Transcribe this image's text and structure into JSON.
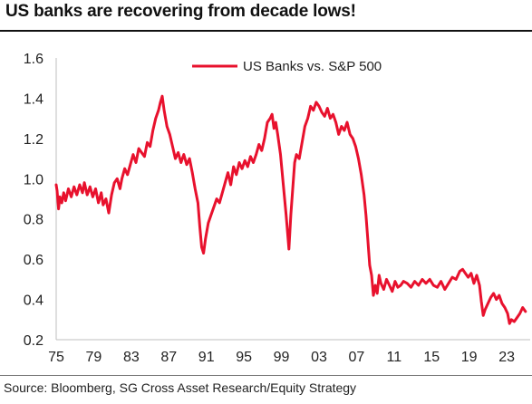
{
  "title": "US banks are recovering from decade lows!",
  "source": "Source: Bloomberg, SG Cross Asset Research/Equity Strategy",
  "colors": {
    "series": "#e8112d",
    "axis": "#bfbfbf",
    "text": "#222222"
  },
  "chart_data": {
    "type": "line",
    "title": "US banks are recovering from decade lows!",
    "xlabel": "",
    "ylabel": "",
    "legend": "top-center",
    "grid": false,
    "xlim": [
      1975,
      2025.5
    ],
    "ylim": [
      0.2,
      1.6
    ],
    "xticks": [
      1975,
      1979,
      1983,
      1987,
      1991,
      1995,
      1999,
      2003,
      2007,
      2011,
      2015,
      2019,
      2023
    ],
    "xtick_labels": [
      "75",
      "79",
      "83",
      "87",
      "91",
      "95",
      "99",
      "03",
      "07",
      "11",
      "15",
      "19",
      "23"
    ],
    "yticks": [
      0.2,
      0.4,
      0.6,
      0.8,
      1.0,
      1.2,
      1.4,
      1.6
    ],
    "ytick_labels": [
      "0.2",
      "0.4",
      "0.6",
      "0.8",
      "1.0",
      "1.2",
      "1.4",
      "1.6"
    ],
    "series": [
      {
        "name": "US Banks vs. S&P 500",
        "color": "#e8112d",
        "x": [
          1975.0,
          1975.1,
          1975.25,
          1975.4,
          1975.6,
          1975.8,
          1976.0,
          1976.3,
          1976.6,
          1976.9,
          1977.2,
          1977.5,
          1977.8,
          1978.0,
          1978.3,
          1978.6,
          1978.9,
          1979.2,
          1979.5,
          1979.8,
          1980.0,
          1980.3,
          1980.6,
          1980.9,
          1981.2,
          1981.5,
          1981.8,
          1982.0,
          1982.3,
          1982.6,
          1982.9,
          1983.2,
          1983.5,
          1983.8,
          1984.1,
          1984.4,
          1984.7,
          1985.0,
          1985.3,
          1985.6,
          1985.9,
          1986.1,
          1986.3,
          1986.5,
          1986.8,
          1987.1,
          1987.4,
          1987.7,
          1988.0,
          1988.3,
          1988.6,
          1988.9,
          1989.2,
          1989.5,
          1989.8,
          1990.1,
          1990.3,
          1990.5,
          1990.7,
          1990.9,
          1991.2,
          1991.5,
          1991.8,
          1992.1,
          1992.4,
          1992.7,
          1993.0,
          1993.3,
          1993.6,
          1993.9,
          1994.2,
          1994.5,
          1994.8,
          1995.1,
          1995.4,
          1995.7,
          1996.0,
          1996.3,
          1996.6,
          1996.9,
          1997.2,
          1997.5,
          1997.8,
          1998.0,
          1998.2,
          1998.4,
          1998.6,
          1998.9,
          1999.2,
          1999.5,
          1999.8,
          2000.0,
          2000.2,
          2000.4,
          2000.6,
          2000.9,
          2001.2,
          2001.5,
          2001.8,
          2002.1,
          2002.4,
          2002.7,
          2003.0,
          2003.3,
          2003.6,
          2003.9,
          2004.2,
          2004.5,
          2004.8,
          2005.1,
          2005.4,
          2005.7,
          2006.0,
          2006.3,
          2006.6,
          2006.9,
          2007.2,
          2007.5,
          2007.8,
          2008.0,
          2008.2,
          2008.4,
          2008.6,
          2008.8,
          2009.0,
          2009.2,
          2009.4,
          2009.6,
          2009.9,
          2010.2,
          2010.5,
          2010.8,
          2011.1,
          2011.4,
          2011.7,
          2012.0,
          2012.4,
          2012.8,
          2013.2,
          2013.6,
          2014.0,
          2014.4,
          2014.8,
          2015.2,
          2015.6,
          2016.0,
          2016.4,
          2016.8,
          2017.2,
          2017.6,
          2018.0,
          2018.3,
          2018.6,
          2018.9,
          2019.2,
          2019.5,
          2019.8,
          2020.1,
          2020.3,
          2020.5,
          2020.7,
          2021.0,
          2021.3,
          2021.6,
          2021.9,
          2022.2,
          2022.5,
          2022.8,
          2023.1,
          2023.3,
          2023.5,
          2023.8,
          2024.1,
          2024.4,
          2024.7,
          2025.0
        ],
        "values": [
          0.97,
          0.94,
          0.85,
          0.91,
          0.88,
          0.93,
          0.89,
          0.95,
          0.91,
          0.96,
          0.92,
          0.97,
          0.93,
          0.98,
          0.92,
          0.96,
          0.91,
          0.95,
          0.88,
          0.93,
          0.87,
          0.9,
          0.83,
          0.92,
          0.98,
          1.0,
          0.95,
          1.0,
          1.05,
          1.02,
          1.07,
          1.12,
          1.08,
          1.15,
          1.13,
          1.11,
          1.18,
          1.16,
          1.24,
          1.3,
          1.34,
          1.38,
          1.41,
          1.34,
          1.26,
          1.22,
          1.16,
          1.1,
          1.13,
          1.08,
          1.12,
          1.07,
          1.1,
          1.03,
          0.95,
          0.88,
          0.76,
          0.66,
          0.63,
          0.7,
          0.78,
          0.82,
          0.86,
          0.9,
          0.88,
          0.93,
          0.98,
          1.03,
          0.97,
          1.06,
          1.02,
          1.08,
          1.05,
          1.09,
          1.06,
          1.11,
          1.08,
          1.12,
          1.17,
          1.14,
          1.2,
          1.28,
          1.3,
          1.32,
          1.25,
          1.28,
          1.22,
          1.12,
          0.97,
          0.82,
          0.65,
          0.82,
          0.95,
          1.08,
          1.12,
          1.1,
          1.18,
          1.26,
          1.3,
          1.36,
          1.34,
          1.38,
          1.36,
          1.33,
          1.31,
          1.35,
          1.3,
          1.32,
          1.28,
          1.22,
          1.26,
          1.24,
          1.28,
          1.22,
          1.2,
          1.16,
          1.1,
          1.02,
          0.92,
          0.82,
          0.7,
          0.57,
          0.52,
          0.42,
          0.47,
          0.43,
          0.52,
          0.48,
          0.45,
          0.5,
          0.47,
          0.44,
          0.49,
          0.46,
          0.47,
          0.49,
          0.48,
          0.46,
          0.49,
          0.47,
          0.5,
          0.48,
          0.5,
          0.47,
          0.46,
          0.49,
          0.45,
          0.48,
          0.51,
          0.5,
          0.54,
          0.55,
          0.53,
          0.51,
          0.53,
          0.48,
          0.52,
          0.47,
          0.39,
          0.32,
          0.35,
          0.38,
          0.41,
          0.43,
          0.4,
          0.42,
          0.38,
          0.36,
          0.33,
          0.28,
          0.3,
          0.29,
          0.31,
          0.33,
          0.36,
          0.34
        ]
      }
    ]
  }
}
